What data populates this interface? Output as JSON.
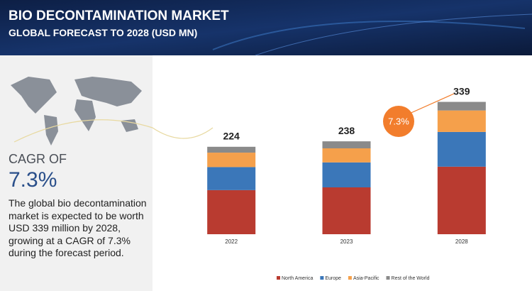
{
  "header": {
    "title": "BIO DECONTAMINATION MARKET",
    "subtitle": "GLOBAL FORECAST TO 2028 (USD MN)"
  },
  "sidebar": {
    "cagr_label": "CAGR OF",
    "cagr_value": "7.3%",
    "description": "The global bio decontamination market is expected to be worth USD 339 million by 2028, growing at a CAGR of 7.3% during the forecast period."
  },
  "chart_data": {
    "type": "stacked_bar",
    "categories": [
      "2022",
      "2023",
      "2028"
    ],
    "series": [
      {
        "name": "North America",
        "color": "#b93b30",
        "values": [
          113,
          120,
          173
        ]
      },
      {
        "name": "Europe",
        "color": "#3b77b9",
        "values": [
          59,
          64,
          89
        ]
      },
      {
        "name": "Asia-Pacific",
        "color": "#f5a04b",
        "values": [
          37,
          36,
          55
        ]
      },
      {
        "name": "Rest of the World",
        "color": "#8a8a8a",
        "values": [
          15,
          18,
          22
        ]
      }
    ],
    "totals": [
      224,
      238,
      339
    ],
    "growth_badge": "7.3%",
    "ylim": [
      0,
      400
    ]
  }
}
